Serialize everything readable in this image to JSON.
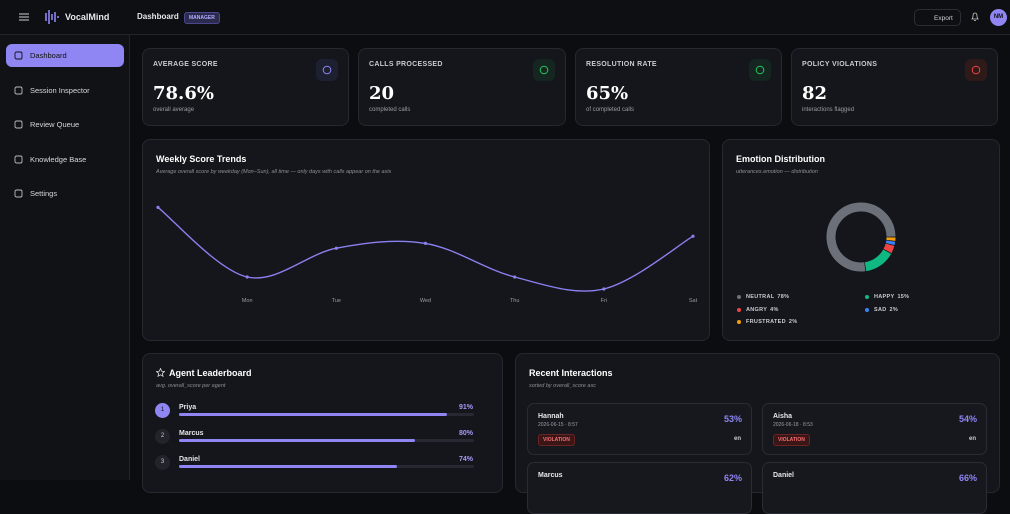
{
  "header": {
    "brand": "VocalMind",
    "page": "Dashboard",
    "role": "MANAGER",
    "export": "Export",
    "avatar": "NM"
  },
  "nav": [
    "Dashboard",
    "Session Inspector",
    "Review Queue",
    "Knowledge Base",
    "Settings"
  ],
  "kpis": [
    {
      "label": "AVERAGE SCORE",
      "value": "78.6%",
      "caption": "overall average"
    },
    {
      "label": "CALLS PROCESSED",
      "value": "20",
      "caption": "completed calls"
    },
    {
      "label": "RESOLUTION RATE",
      "value": "65%",
      "caption": "of completed calls"
    },
    {
      "label": "POLICY VIOLATIONS",
      "value": "82",
      "caption": "interactions flagged"
    }
  ],
  "chart_data": [
    {
      "type": "line",
      "title": "Weekly Score Trends",
      "subtitle": "Average overall score by weekday (Mon–Sun), all time — only days with calls appear on the axis",
      "categories": [
        null,
        "Mon",
        "Tue",
        "Wed",
        "Thu",
        "Fri",
        "Sat"
      ],
      "values": [
        89,
        60,
        72,
        74,
        60,
        55,
        77
      ],
      "color": "#8b80f0",
      "ylim": [
        50,
        100
      ]
    },
    {
      "type": "pie",
      "title": "Emotion Distribution",
      "subtitle": "utterances.emotion — distribution",
      "categories": [
        "NEUTRAL",
        "HAPPY",
        "ANGRY",
        "SAD",
        "FRUSTRATED"
      ],
      "values": [
        78,
        15,
        4,
        2,
        2
      ],
      "value_labels": [
        "78%",
        "15%",
        "4%",
        "2%",
        "2%"
      ],
      "colors": [
        "#6b7079",
        "#10b981",
        "#ef4444",
        "#3b82f6",
        "#f59e0b"
      ]
    }
  ],
  "leaderboard": {
    "title": "Agent Leaderboard",
    "subtitle": "avg. overall_score per agent",
    "max": 100,
    "agents": [
      {
        "rank": "1",
        "name": "Priya",
        "score": 91,
        "score_label": "91%"
      },
      {
        "rank": "2",
        "name": "Marcus",
        "score": 80,
        "score_label": "80%"
      },
      {
        "rank": "3",
        "name": "Daniel",
        "score": 74,
        "score_label": "74%"
      }
    ]
  },
  "recent": {
    "title": "Recent Interactions",
    "subtitle": "sorted by overall_score asc",
    "items": [
      {
        "name": "Hannah",
        "date": "2026-06-15 · 8:57",
        "score": "53%",
        "flag": "VIOLATION",
        "lang": "en"
      },
      {
        "name": "Aisha",
        "date": "2026-06-18 · 8:53",
        "score": "54%",
        "flag": "VIOLATION",
        "lang": "en"
      },
      {
        "name": "Marcus",
        "score": "62%"
      },
      {
        "name": "Daniel",
        "score": "66%"
      }
    ]
  }
}
